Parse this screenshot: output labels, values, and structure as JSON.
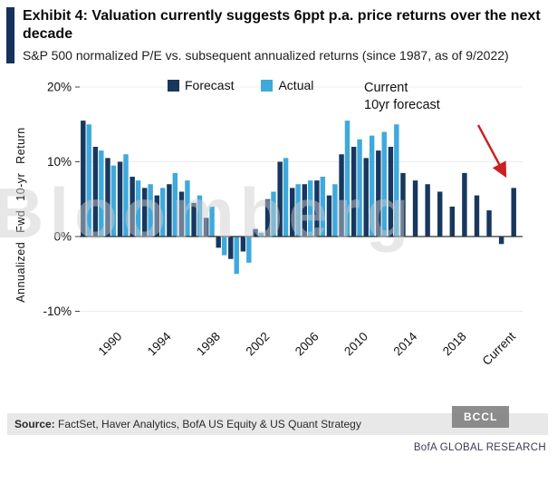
{
  "header": {
    "title": "Exhibit 4: Valuation currently suggests 6ppt p.a. price returns over the next decade",
    "subtitle": "S&P 500 normalized P/E vs. subsequent annualized returns (since 1987, as of 9/2022)"
  },
  "annotation": {
    "text": "Current\n10yr forecast"
  },
  "watermark": {
    "text": "Bloomberg"
  },
  "badges": {
    "bccl": "BCCL"
  },
  "footer": {
    "source_label": "Source:",
    "source_text": " FactSet, Haver Analytics, BofA US Equity & US Quant Strategy",
    "credit": "BofA GLOBAL RESEARCH"
  },
  "colors": {
    "accent": "#16325c",
    "forecast": "#17375e",
    "actual": "#3fa9dc",
    "arrow": "#cc1f1f"
  },
  "chart_data": {
    "type": "bar",
    "title": "S&P 500 normalized P/E vs. subsequent annualized returns (since 1987, as of 9/2022)",
    "xlabel": "",
    "ylabel": "Annualized Fwd 10-yr Return",
    "ylim": [
      -12,
      20
    ],
    "grid": false,
    "legend_position": "top",
    "yticks": [
      {
        "value": 20,
        "label": "20%"
      },
      {
        "value": 10,
        "label": "10%"
      },
      {
        "value": 0,
        "label": "0%"
      },
      {
        "value": -10,
        "label": "-10%"
      }
    ],
    "xticks": [
      "1990",
      "1994",
      "1998",
      "2002",
      "2006",
      "2010",
      "2014",
      "2018",
      "Current"
    ],
    "categories": [
      "1987",
      "1988",
      "1989",
      "1990",
      "1991",
      "1992",
      "1993",
      "1994",
      "1995",
      "1996",
      "1997",
      "1998",
      "1999",
      "2000",
      "2001",
      "2002",
      "2003",
      "2004",
      "2005",
      "2006",
      "2007",
      "2008",
      "2009",
      "2010",
      "2011",
      "2012",
      "2013",
      "2014",
      "2015",
      "2016",
      "2017",
      "2018",
      "2019",
      "2020",
      "2021",
      "Current"
    ],
    "series": [
      {
        "name": "Forecast",
        "color": "#17375e",
        "values": [
          15.5,
          12,
          10.5,
          10,
          8,
          6.5,
          5.5,
          7,
          6,
          4.5,
          2.5,
          -1.5,
          -3,
          -2,
          1,
          5,
          10,
          6.5,
          7,
          7.5,
          5.5,
          11,
          12,
          10.5,
          11.5,
          12,
          8.5,
          7.5,
          7,
          6,
          4,
          8.5,
          5.5,
          3.5,
          -1,
          6.5
        ]
      },
      {
        "name": "Actual",
        "color": "#3fa9dc",
        "values": [
          15,
          11.5,
          9.5,
          11,
          7.5,
          7,
          6.5,
          8.5,
          7.5,
          5.5,
          4,
          -2.5,
          -5,
          -3.5,
          0.5,
          6,
          10.5,
          7,
          7.5,
          8,
          7,
          15.5,
          13,
          13.5,
          14,
          15,
          null,
          null,
          null,
          null,
          null,
          null,
          null,
          null,
          null,
          null
        ]
      }
    ]
  }
}
